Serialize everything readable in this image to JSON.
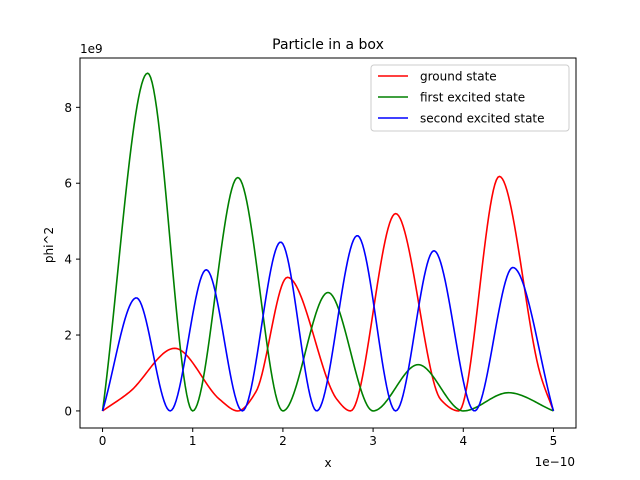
{
  "chart_data": {
    "type": "line",
    "title": "Particle in a box",
    "xlabel": "x",
    "ylabel": "phi^2",
    "x_offset_label": "1e−10",
    "y_offset_label": "1e9",
    "x_scale": 1e-10,
    "y_scale": 1000000000.0,
    "xlim": [
      -0.25,
      5.25
    ],
    "ylim": [
      -0.45,
      9.3
    ],
    "x_ticks": [
      0,
      1,
      2,
      3,
      4,
      5
    ],
    "y_ticks": [
      0,
      2,
      4,
      6,
      8
    ],
    "grid": false,
    "legend": "top-right",
    "series": [
      {
        "name": "ground state",
        "color": "#ff0000",
        "x": [
          0,
          0.3,
          0.8,
          1.3,
          1.5,
          1.7,
          2.05,
          2.6,
          2.75,
          3.25,
          3.75,
          3.95,
          4.4,
          4.85,
          5.0
        ],
        "y": [
          0,
          0.5,
          1.65,
          0.3,
          0,
          0.5,
          3.52,
          0.3,
          0,
          5.2,
          0.3,
          0,
          6.18,
          1.0,
          0
        ]
      },
      {
        "name": "first excited state",
        "color": "#008000",
        "x": [
          0,
          0.5,
          1.0,
          1.5,
          2.0,
          2.5,
          3.0,
          3.5,
          4.0,
          4.5,
          5.0
        ],
        "y": [
          0,
          8.9,
          0,
          6.15,
          0,
          3.12,
          0,
          1.22,
          0,
          0.48,
          0
        ]
      },
      {
        "name": "second excited state",
        "color": "#0000ff",
        "x": [
          0,
          0.375,
          0.75,
          1.15,
          1.55,
          1.975,
          2.375,
          2.825,
          3.25,
          3.675,
          4.125,
          4.55,
          5.0
        ],
        "y": [
          0,
          2.98,
          0,
          3.72,
          0,
          4.45,
          0,
          4.62,
          0,
          4.22,
          0,
          3.78,
          0
        ]
      }
    ]
  }
}
